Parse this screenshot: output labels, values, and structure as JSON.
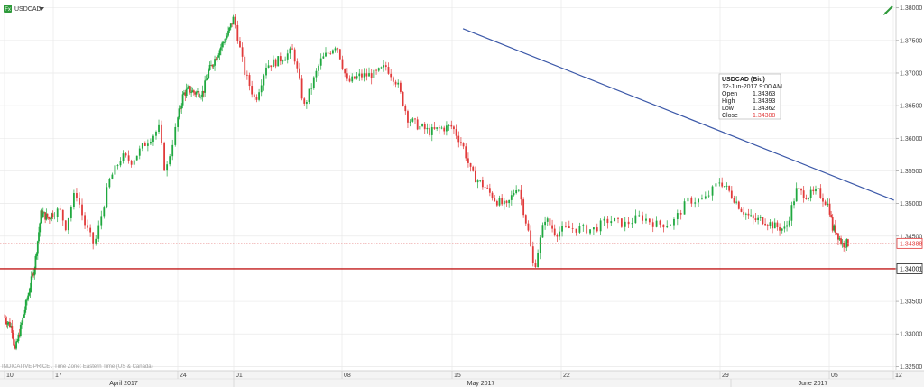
{
  "symbol": {
    "label": "USDCAD",
    "dropdown_icon": "caret-down-icon"
  },
  "footnote": "INDICATIVE PRICE . Time Zone: Eastern Time (US & Canada)",
  "tooltip": {
    "title": "USDCAD (Bid)",
    "datetime": "12-Jun-2017 9:00 AM",
    "rows": [
      {
        "label": "Open",
        "value": "1.34363"
      },
      {
        "label": "High",
        "value": "1.34393"
      },
      {
        "label": "Low",
        "value": "1.34362"
      },
      {
        "label": "Close",
        "value": "1.34388"
      }
    ]
  },
  "colors": {
    "up": "#1fa83f",
    "down": "#e13a3a",
    "trendline": "#3b58a8",
    "hline": "#c21a1a",
    "grid": "#e9e9e9"
  },
  "chart_data": {
    "type": "candlestick",
    "ylim": [
      1.3245,
      1.3812
    ],
    "y_ticks": [
      "1.32500",
      "1.33000",
      "1.33500",
      "1.34000",
      "1.34500",
      "1.35000",
      "1.35500",
      "1.36000",
      "1.36500",
      "1.37000",
      "1.37500",
      "1.38000"
    ],
    "x_ticks": [
      "10",
      "17",
      "24",
      "01",
      "08",
      "15",
      "22",
      "29",
      "05",
      "12"
    ],
    "months": [
      "April 2017",
      "May 2017",
      "June 2017"
    ],
    "last_price": "1.34388",
    "horizontal_line": {
      "value": 1.34,
      "label": "1.34001"
    },
    "trendline": [
      {
        "x": 5.1,
        "y": 1.3768
      },
      {
        "x": 9.01,
        "y": 1.3505
      }
    ],
    "price_path": [
      [
        0.0,
        1.3325
      ],
      [
        0.15,
        1.331
      ],
      [
        0.22,
        1.3275
      ],
      [
        0.35,
        1.3315
      ],
      [
        0.5,
        1.3365
      ],
      [
        0.62,
        1.3405
      ],
      [
        0.75,
        1.3485
      ],
      [
        0.9,
        1.3478
      ],
      [
        1.05,
        1.349
      ],
      [
        1.1,
        1.3465
      ],
      [
        1.18,
        1.352
      ],
      [
        1.25,
        1.347
      ],
      [
        1.33,
        1.3435
      ],
      [
        1.45,
        1.3535
      ],
      [
        1.55,
        1.3572
      ],
      [
        1.63,
        1.3565
      ],
      [
        1.75,
        1.3595
      ],
      [
        1.85,
        1.3615
      ],
      [
        1.9,
        1.3545
      ],
      [
        2.0,
        1.363
      ],
      [
        2.1,
        1.3668
      ],
      [
        2.2,
        1.3675
      ],
      [
        2.3,
        1.367
      ],
      [
        2.45,
        1.367
      ],
      [
        2.55,
        1.3702
      ],
      [
        2.7,
        1.3728
      ],
      [
        2.8,
        1.3745
      ],
      [
        2.9,
        1.376
      ],
      [
        3.0,
        1.3785
      ],
      [
        3.1,
        1.3702
      ],
      [
        3.2,
        1.3658
      ],
      [
        3.3,
        1.3712
      ],
      [
        3.4,
        1.3718
      ],
      [
        3.55,
        1.3735
      ],
      [
        3.65,
        1.3648
      ],
      [
        3.8,
        1.3718
      ],
      [
        3.95,
        1.3745
      ],
      [
        4.05,
        1.3685
      ],
      [
        4.15,
        1.3695
      ],
      [
        4.3,
        1.3698
      ],
      [
        4.4,
        1.371
      ],
      [
        4.5,
        1.3685
      ],
      [
        4.6,
        1.363
      ],
      [
        4.7,
        1.3618
      ],
      [
        4.8,
        1.361
      ],
      [
        4.9,
        1.3615
      ],
      [
        5.0,
        1.3618
      ],
      [
        5.1,
        1.3588
      ],
      [
        5.18,
        1.3545
      ],
      [
        5.3,
        1.3525
      ],
      [
        5.4,
        1.3505
      ],
      [
        5.5,
        1.3495
      ],
      [
        5.6,
        1.353
      ],
      [
        5.7,
        1.3455
      ],
      [
        5.75,
        1.3398
      ],
      [
        5.85,
        1.3478
      ],
      [
        5.95,
        1.3455
      ],
      [
        6.05,
        1.3462
      ],
      [
        6.2,
        1.346
      ],
      [
        6.3,
        1.3475
      ],
      [
        6.4,
        1.3468
      ],
      [
        6.5,
        1.348
      ],
      [
        6.6,
        1.3468
      ],
      [
        6.7,
        1.347
      ],
      [
        6.8,
        1.3505
      ],
      [
        6.9,
        1.3505
      ],
      [
        7.0,
        1.3535
      ],
      [
        7.1,
        1.3515
      ],
      [
        7.2,
        1.349
      ],
      [
        7.3,
        1.3475
      ],
      [
        7.4,
        1.3475
      ],
      [
        7.5,
        1.3465
      ],
      [
        7.6,
        1.346
      ],
      [
        7.7,
        1.352
      ],
      [
        7.8,
        1.3512
      ],
      [
        7.9,
        1.3518
      ],
      [
        8.0,
        1.3495
      ],
      [
        8.05,
        1.3462
      ],
      [
        8.1,
        1.346
      ],
      [
        8.2,
        1.3438
      ],
      [
        8.3,
        1.3439
      ]
    ]
  }
}
